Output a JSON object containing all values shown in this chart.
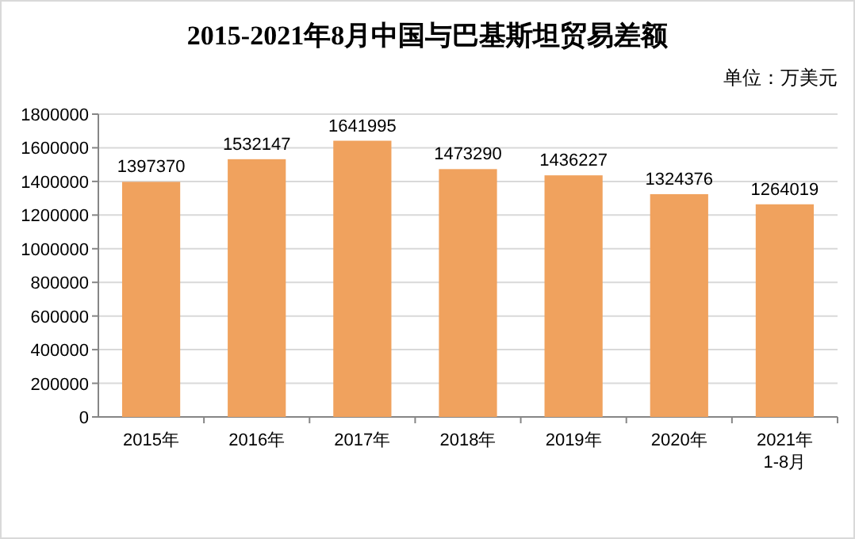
{
  "chart_data": {
    "type": "bar",
    "title": "2015-2021年8月中国与巴基斯坦贸易差额",
    "annotations": [
      "单位：万美元"
    ],
    "categories": [
      "2015年",
      "2016年",
      "2017年",
      "2018年",
      "2019年",
      "2020年",
      "2021年\n1-8月"
    ],
    "values": [
      1397370,
      1532147,
      1641995,
      1473290,
      1436227,
      1324376,
      1264019
    ],
    "color": "#f0a25e",
    "ylim": [
      0,
      1800000
    ],
    "yticks": [
      0,
      200000,
      400000,
      600000,
      800000,
      1000000,
      1200000,
      1400000,
      1600000,
      1800000
    ],
    "grid": "y",
    "data_labels": true
  }
}
